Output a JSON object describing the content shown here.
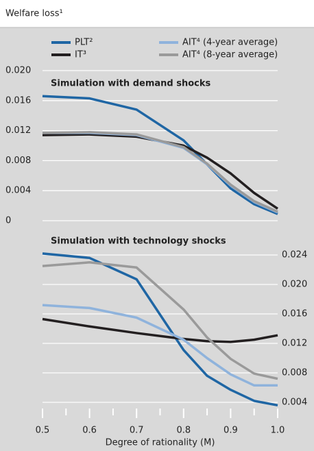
{
  "header": "Welfare loss¹",
  "chart_data": [
    {
      "type": "line",
      "title": "Simulation with demand shocks",
      "x": [
        0.5,
        0.6,
        0.7,
        0.8,
        0.85,
        0.9,
        0.95,
        1.0
      ],
      "series": [
        {
          "name": "PLT²",
          "color": "#1f66a4",
          "values": [
            0.0166,
            0.0163,
            0.0148,
            0.0107,
            0.0075,
            0.0043,
            0.0022,
            0.0009
          ]
        },
        {
          "name": "IT³",
          "color": "#231f20",
          "values": [
            0.0114,
            0.0115,
            0.0112,
            0.01,
            0.0084,
            0.0063,
            0.0037,
            0.0016
          ]
        },
        {
          "name": "AIT⁴ (4-year average)",
          "color": "#8fb3dc",
          "values": [
            0.0117,
            0.0117,
            0.0114,
            0.0097,
            0.0075,
            0.0047,
            0.0025,
            0.0011
          ]
        },
        {
          "name": "AIT⁴ (8-year average)",
          "color": "#9a9a9a",
          "values": [
            0.0117,
            0.0118,
            0.0115,
            0.0098,
            0.0076,
            0.0048,
            0.0026,
            0.0012
          ]
        }
      ],
      "xlim": [
        0.5,
        1.0
      ],
      "ylim": [
        0,
        0.02
      ],
      "yticks": [
        0,
        0.004,
        0.008,
        0.012,
        0.016,
        {
          "value": 0.02,
          "label": "0.020"
        }
      ],
      "grid": true,
      "y_axis_side": "left"
    },
    {
      "type": "line",
      "title": "Simulation with technology shocks",
      "x": [
        0.5,
        0.6,
        0.7,
        0.8,
        0.85,
        0.9,
        0.95,
        1.0
      ],
      "series": [
        {
          "name": "PLT²",
          "color": "#1f66a4",
          "values": [
            0.0242,
            0.0236,
            0.0207,
            0.0111,
            0.0076,
            0.0057,
            0.0042,
            0.0036
          ]
        },
        {
          "name": "IT³",
          "color": "#231f20",
          "values": [
            0.0153,
            0.0143,
            0.0134,
            0.0126,
            0.0123,
            0.0122,
            0.0125,
            0.0131
          ]
        },
        {
          "name": "AIT⁴ (4-year average)",
          "color": "#8fb3dc",
          "values": [
            0.0172,
            0.0168,
            0.0155,
            0.0125,
            0.01,
            0.0078,
            0.0063,
            0.0063
          ]
        },
        {
          "name": "AIT⁴ (8-year average)",
          "color": "#9a9a9a",
          "values": [
            0.0225,
            0.023,
            0.0223,
            0.0166,
            0.0128,
            0.0099,
            0.0079,
            0.0072
          ]
        }
      ],
      "xlim": [
        0.5,
        1.0
      ],
      "ylim": [
        0.002,
        0.026
      ],
      "yticks": [
        0.004,
        0.008,
        0.012,
        0.016,
        {
          "value": 0.02,
          "label": "0.020"
        },
        0.024
      ],
      "xticks": [
        0.5,
        0.6,
        0.7,
        0.8,
        0.9,
        {
          "value": 1.0,
          "label": "1.0"
        }
      ],
      "xminorticks": [
        0.55,
        0.65,
        0.75,
        0.85,
        0.95
      ],
      "xlabel": "Degree of rationality (M)",
      "grid": true,
      "y_axis_side": "right"
    }
  ]
}
